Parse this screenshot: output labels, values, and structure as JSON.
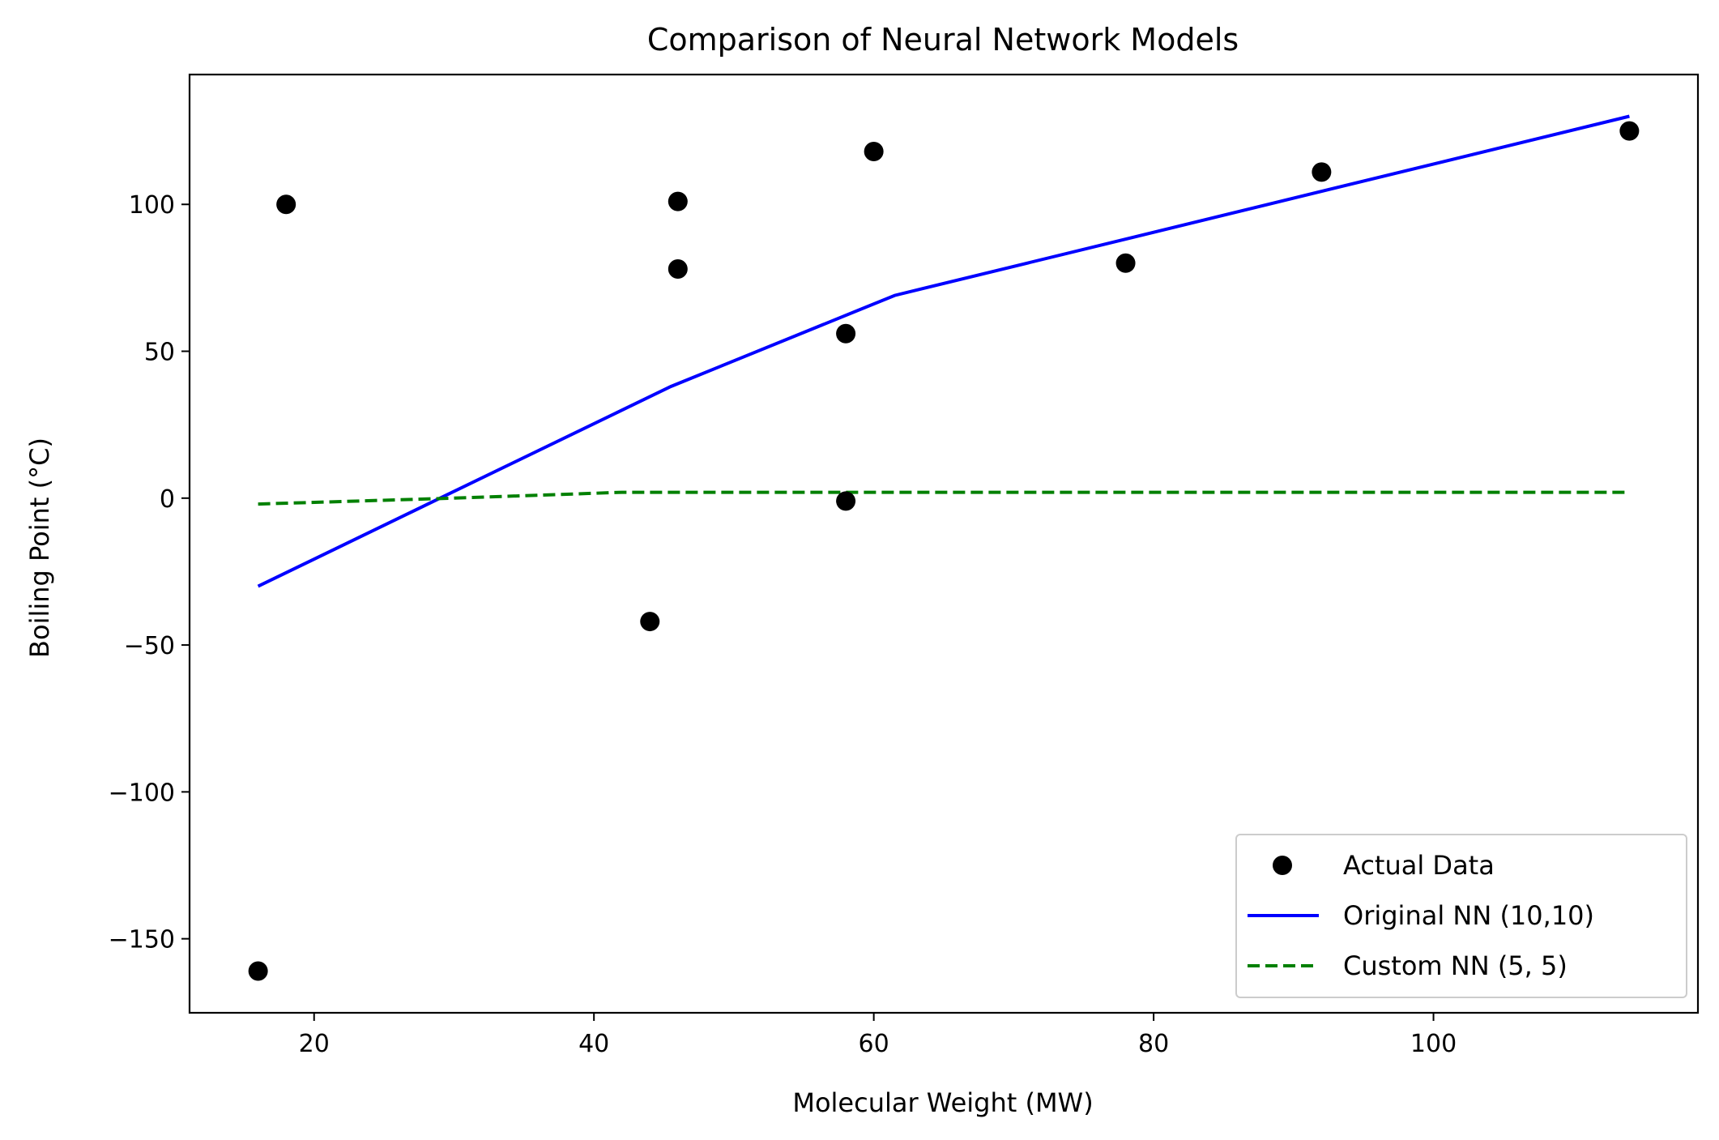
{
  "chart_data": {
    "type": "line",
    "title": "Comparison of Neural Network Models",
    "xlabel": "Molecular Weight (MW)",
    "ylabel": "Boiling Point (°C)",
    "xlim": [
      11.1,
      118.9
    ],
    "ylim": [
      -175.2,
      144.2
    ],
    "xticks": [
      20,
      40,
      60,
      80,
      100
    ],
    "xtick_labels": [
      "20",
      "40",
      "60",
      "80",
      "100"
    ],
    "yticks": [
      -150,
      -100,
      -50,
      0,
      50,
      100
    ],
    "ytick_labels": [
      "−150",
      "−100",
      "−50",
      "0",
      "50",
      "100"
    ],
    "grid": false,
    "legend_position": "lower-right",
    "series": [
      {
        "name": "Actual Data",
        "kind": "scatter",
        "color": "#000000",
        "points": [
          {
            "x": 16,
            "y": -161
          },
          {
            "x": 18,
            "y": 100
          },
          {
            "x": 44,
            "y": -42
          },
          {
            "x": 46,
            "y": 78
          },
          {
            "x": 46,
            "y": 101
          },
          {
            "x": 58,
            "y": 56
          },
          {
            "x": 58,
            "y": -1
          },
          {
            "x": 60,
            "y": 118
          },
          {
            "x": 78,
            "y": 80
          },
          {
            "x": 92,
            "y": 111
          },
          {
            "x": 114,
            "y": 125
          }
        ]
      },
      {
        "name": "Original NN (10,10)",
        "kind": "line",
        "color": "#0000ff",
        "dash": "solid",
        "points": [
          {
            "x": 16,
            "y": -30
          },
          {
            "x": 29,
            "y": 0
          },
          {
            "x": 45.5,
            "y": 38
          },
          {
            "x": 61.5,
            "y": 69
          },
          {
            "x": 114,
            "y": 130
          }
        ]
      },
      {
        "name": "Custom NN (5, 5)",
        "kind": "line",
        "color": "#008000",
        "dash": "dashed",
        "points": [
          {
            "x": 16,
            "y": -2
          },
          {
            "x": 30,
            "y": 0
          },
          {
            "x": 42,
            "y": 2
          },
          {
            "x": 114,
            "y": 2
          }
        ]
      }
    ]
  }
}
